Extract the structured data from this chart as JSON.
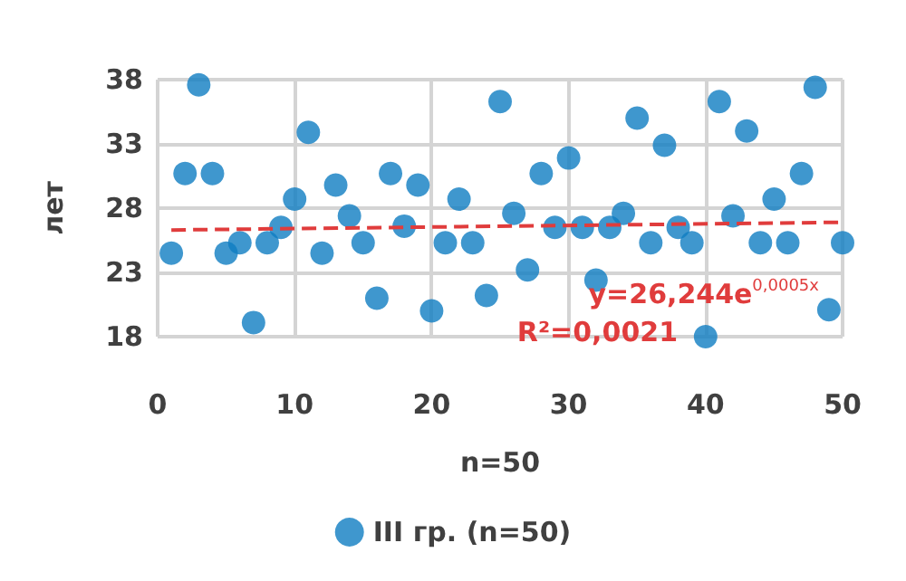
{
  "chart_data": {
    "type": "scatter",
    "xlabel": "n=50",
    "ylabel": "лет",
    "x": [
      1,
      2,
      3,
      4,
      5,
      6,
      7,
      8,
      9,
      10,
      11,
      12,
      13,
      14,
      15,
      16,
      17,
      18,
      19,
      20,
      21,
      22,
      23,
      24,
      25,
      26,
      27,
      28,
      29,
      30,
      31,
      32,
      33,
      34,
      35,
      36,
      37,
      38,
      39,
      40,
      41,
      42,
      43,
      44,
      45,
      46,
      47,
      48,
      49,
      50
    ],
    "series": [
      {
        "name": "III гр. (n=50)",
        "color": "#0f7dc2",
        "values": [
          24.5,
          30.7,
          37.6,
          30.7,
          24.5,
          25.3,
          19.1,
          25.3,
          26.5,
          28.7,
          33.9,
          24.5,
          29.8,
          27.4,
          25.3,
          21,
          30.7,
          26.6,
          29.8,
          20,
          25.3,
          28.7,
          25.3,
          21.2,
          36.3,
          27.6,
          23.2,
          30.7,
          26.5,
          31.9,
          26.5,
          22.4,
          26.5,
          27.6,
          35,
          25.3,
          32.9,
          26.5,
          25.3,
          18,
          36.3,
          27.4,
          34,
          25.3,
          28.7,
          25.3,
          30.7,
          37.4,
          20.1,
          25.3
        ]
      },
      {
        "type": "line",
        "x": [
          1,
          50
        ],
        "color": "#e03c3c",
        "line_style": "dashed",
        "marker": "none",
        "values": [
          26.3,
          26.9
        ]
      }
    ],
    "xlim": [
      0,
      50
    ],
    "xticks": [
      0,
      10,
      20,
      30,
      40,
      50
    ],
    "ylim": [
      18,
      38
    ],
    "yticks": [
      18,
      23,
      28,
      33,
      38
    ],
    "grid": true,
    "legend": "bottom",
    "marker": "circle",
    "annotations": [
      "y=26,244e$^{0,0005x}$",
      "R²=0,0021"
    ]
  }
}
